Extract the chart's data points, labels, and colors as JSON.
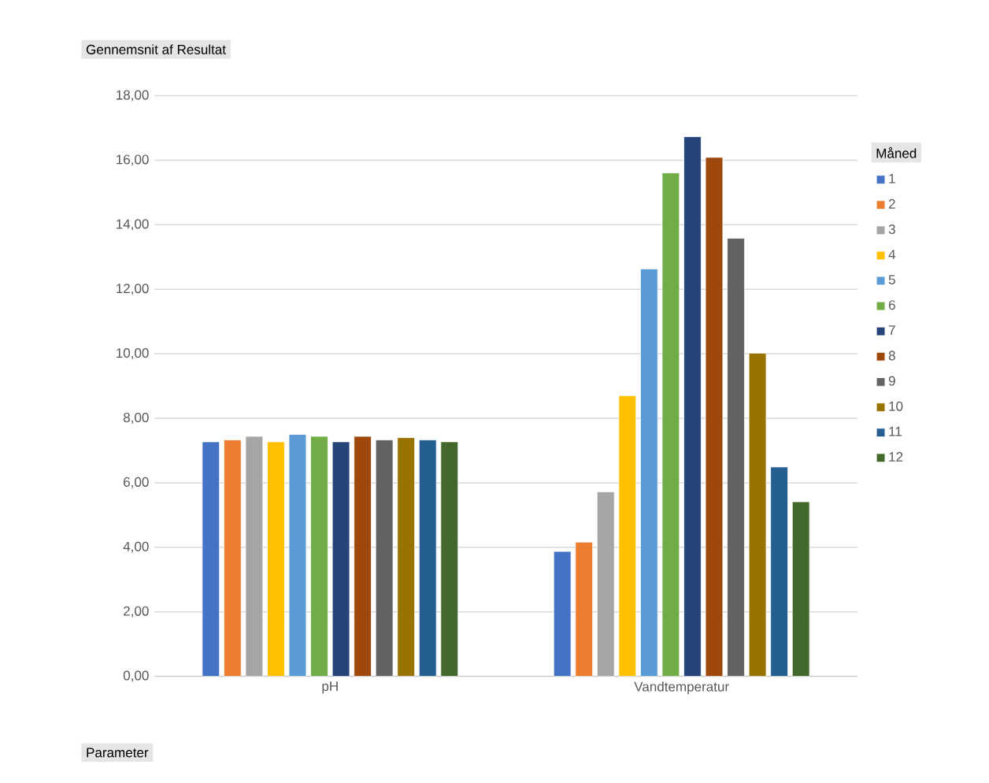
{
  "chart_data": {
    "type": "bar",
    "annotations": [
      "Gennemsnit af Resultat",
      "Parameter"
    ],
    "legend_title": "Måned",
    "categories": [
      "pH",
      "Vandtemperatur"
    ],
    "series": [
      {
        "name": "1",
        "color": "#4472c4",
        "values": [
          7.27,
          3.87
        ]
      },
      {
        "name": "2",
        "color": "#ed7d31",
        "values": [
          7.33,
          4.16
        ]
      },
      {
        "name": "3",
        "color": "#a5a5a5",
        "values": [
          7.44,
          5.72
        ]
      },
      {
        "name": "4",
        "color": "#ffc000",
        "values": [
          7.27,
          8.7
        ]
      },
      {
        "name": "5",
        "color": "#5b9bd5",
        "values": [
          7.5,
          12.63
        ]
      },
      {
        "name": "6",
        "color": "#70ad47",
        "values": [
          7.44,
          15.61
        ]
      },
      {
        "name": "7",
        "color": "#264478",
        "values": [
          7.27,
          16.73
        ]
      },
      {
        "name": "8",
        "color": "#9e480e",
        "values": [
          7.44,
          16.09
        ]
      },
      {
        "name": "9",
        "color": "#636363",
        "values": [
          7.33,
          13.58
        ]
      },
      {
        "name": "10",
        "color": "#997300",
        "values": [
          7.4,
          10.02
        ]
      },
      {
        "name": "11",
        "color": "#255e91",
        "values": [
          7.33,
          6.49
        ]
      },
      {
        "name": "12",
        "color": "#43682b",
        "values": [
          7.27,
          5.41
        ]
      }
    ],
    "ylim": [
      0,
      18
    ],
    "yticks": [
      {
        "value": 0,
        "label": "0,00"
      },
      {
        "value": 2,
        "label": "2,00"
      },
      {
        "value": 4,
        "label": "4,00"
      },
      {
        "value": 6,
        "label": "6,00"
      },
      {
        "value": 8,
        "label": "8,00"
      },
      {
        "value": 10,
        "label": "10,00"
      },
      {
        "value": 12,
        "label": "12,00"
      },
      {
        "value": 14,
        "label": "14,00"
      },
      {
        "value": 16,
        "label": "16,00"
      },
      {
        "value": 18,
        "label": "18,00"
      }
    ],
    "grid": "y",
    "legend": "right"
  }
}
